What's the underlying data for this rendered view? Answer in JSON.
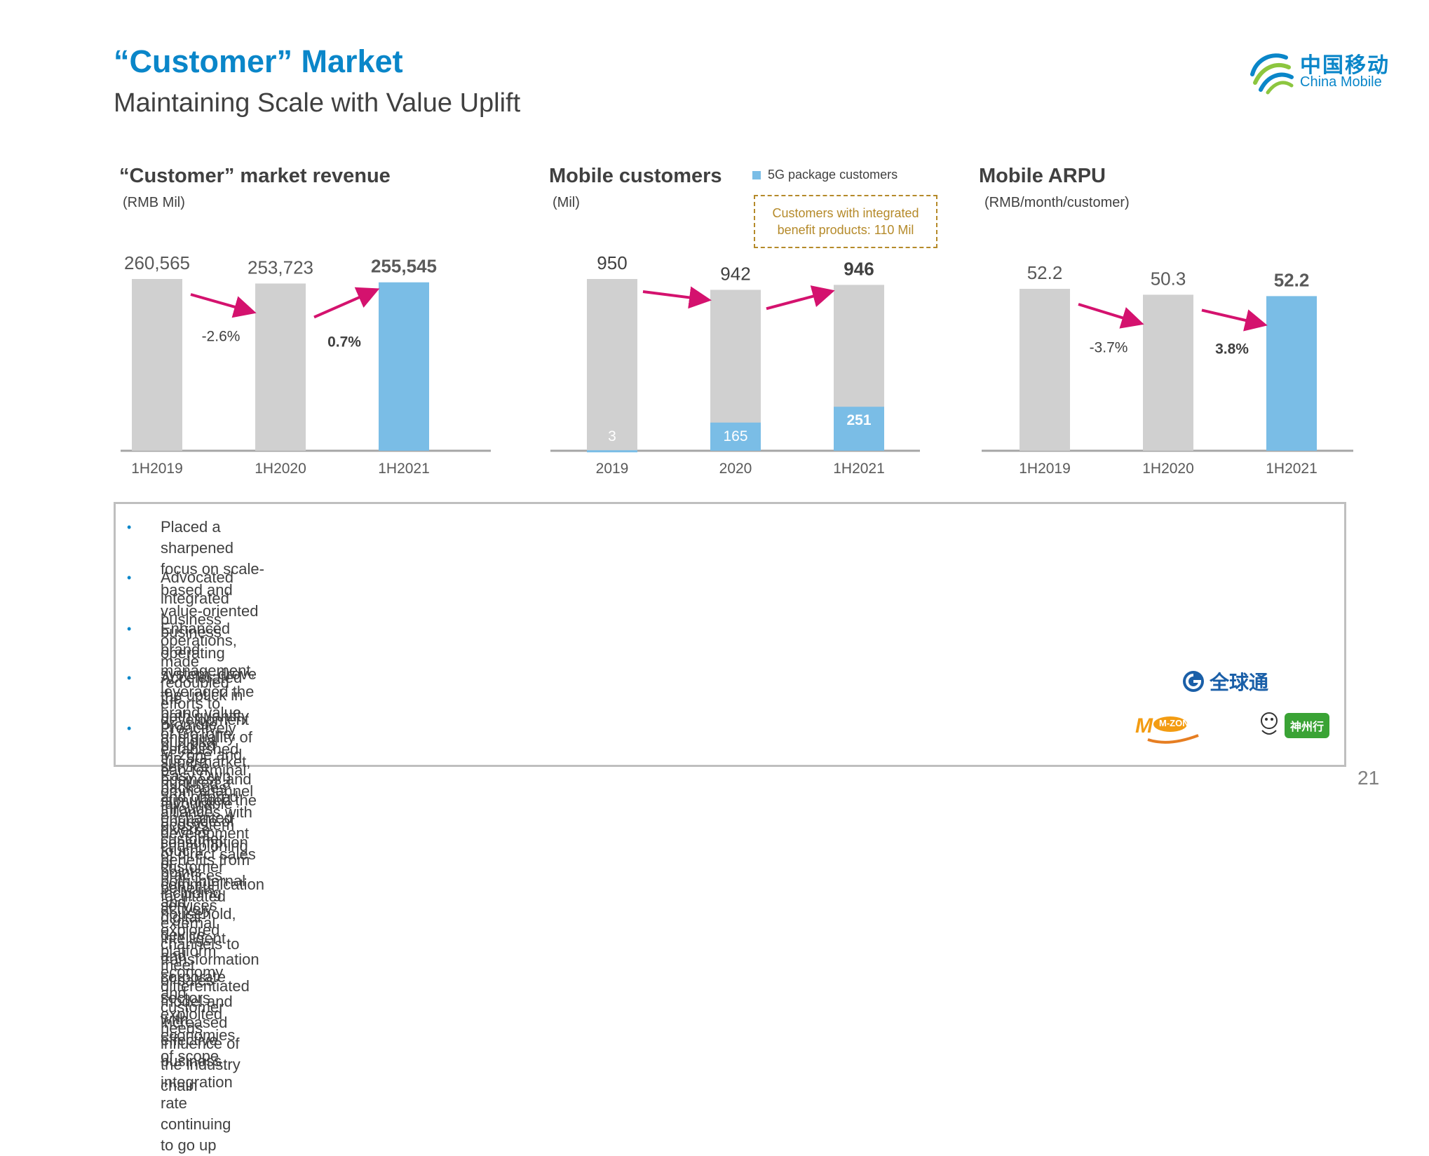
{
  "header": {
    "title": "“Customer” Market",
    "subtitle": "Maintaining Scale with Value Uplift"
  },
  "logo": {
    "cn": "中国移动",
    "en": "China Mobile"
  },
  "colors": {
    "accent": "#0a86c9",
    "bar_gray": "#d0d0d0",
    "bar_blue": "#7abde6",
    "arrow": "#d4126e",
    "callout": "#b58a2a"
  },
  "chart_data": [
    {
      "type": "bar",
      "title": "“Customer” market revenue",
      "ylabel": "(RMB Mil)",
      "categories": [
        "1H2019",
        "1H2020",
        "1H2021"
      ],
      "values": [
        260565,
        253723,
        255545
      ],
      "value_labels": [
        "260,565",
        "253,723",
        "255,545"
      ],
      "highlight_index": 2,
      "changes": [
        {
          "from": 0,
          "to": 1,
          "label": "-2.6%"
        },
        {
          "from": 1,
          "to": 2,
          "label": "0.7%"
        }
      ]
    },
    {
      "type": "bar",
      "title": "Mobile customers",
      "ylabel": "(Mil)",
      "categories": [
        "2019",
        "2020",
        "1H2021"
      ],
      "series": [
        {
          "name": "Mobile customers",
          "values": [
            950,
            942,
            946
          ],
          "labels": [
            "950",
            "942",
            "946"
          ]
        },
        {
          "name": "5G package customers",
          "values": [
            3,
            165,
            251
          ],
          "labels": [
            "3",
            "165",
            "251"
          ]
        }
      ],
      "legend": "5G package customers",
      "callout": "Customers with integrated benefit products: 110 Mil"
    },
    {
      "type": "bar",
      "title": "Mobile ARPU",
      "ylabel": "(RMB/month/customer)",
      "categories": [
        "1H2019",
        "1H2020",
        "1H2021"
      ],
      "values": [
        52.2,
        50.3,
        52.2
      ],
      "value_labels": [
        "52.2",
        "50.3",
        "52.2"
      ],
      "highlight_index": 2,
      "changes": [
        {
          "from": 0,
          "to": 1,
          "label": "-3.7%"
        },
        {
          "from": 1,
          "to": 2,
          "label": "3.8%"
        }
      ]
    }
  ],
  "bullets": [
    [
      "Placed a sharpened focus on scale-based and value-oriented business operating system, drove the uptick in both quantity and quality of the 5G business and",
      "stimulated the upgrade of consumption of communication services"
    ],
    [
      "Advocated integrated business operations, made redoubled efforts to promote bundled service packages through diverse touch-points including household, device",
      "and corporate sectors with effective business integration rate continuing to go up"
    ],
    [
      "Enhanced brand management, leveraged the brand value of GoTone, M-zone and Easy Own and offered enchanted customer benefits from both internal and",
      "external channels to meet differentiated customer needs"
    ],
    [
      "Accelerated the development of digital supermarket, nurtured a favourable ecosystem championing customer benefits, actively",
      "explored platform economy and exploited economies of scope"
    ],
    [
      "Proactively established pan-terminal omni-channel alliances with development of direct sales practices, facilitated digital-",
      "intelligent transformation of sales model and increased influence of the industry chain"
    ]
  ],
  "brand_logos": {
    "gotone": "全球通",
    "mzone": "M-ZONE",
    "easyown": "神州行"
  },
  "page_number": "21"
}
